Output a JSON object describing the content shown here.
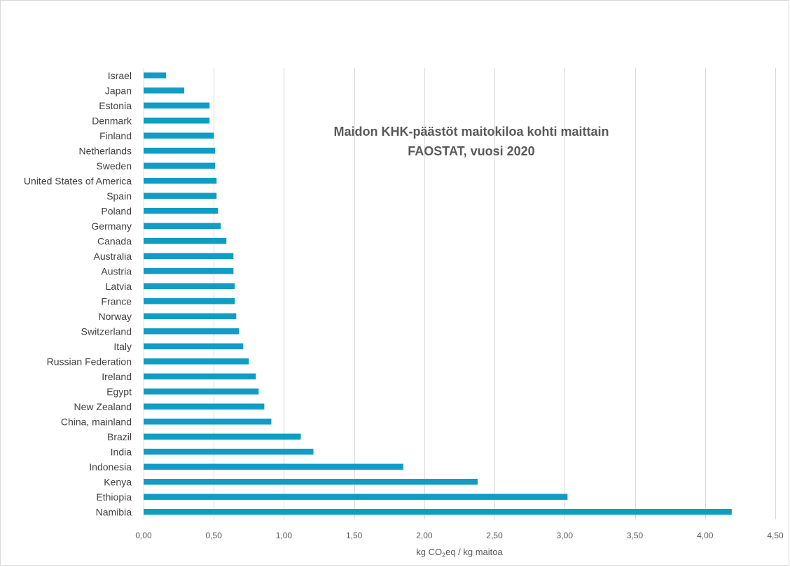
{
  "chart_data": {
    "type": "bar",
    "orientation": "horizontal",
    "title_line1": "Maidon KHK-päästöt maitokiloa kohti maittain",
    "title_line2": "FAOSTAT, vuosi 2020",
    "xlabel_prefix": "kg CO",
    "xlabel_sub": "2",
    "xlabel_suffix": "eq / kg maitoa",
    "ylabel": "",
    "xlim": [
      0,
      4.5
    ],
    "x_ticks": [
      0,
      0.5,
      1.0,
      1.5,
      2.0,
      2.5,
      3.0,
      3.5,
      4.0,
      4.5
    ],
    "x_tick_labels": [
      "0,00",
      "0,50",
      "1,00",
      "1,50",
      "2,00",
      "2,50",
      "3,00",
      "3,50",
      "4,00",
      "4,50"
    ],
    "grid": "vertical major gridlines",
    "bar_color": "#0f9dc4",
    "categories": [
      "Israel",
      "Japan",
      "Estonia",
      "Denmark",
      "Finland",
      "Netherlands",
      "Sweden",
      "United States of America",
      "Spain",
      "Poland",
      "Germany",
      "Canada",
      "Australia",
      "Austria",
      "Latvia",
      "France",
      "Norway",
      "Switzerland",
      "Italy",
      "Russian Federation",
      "Ireland",
      "Egypt",
      "New Zealand",
      "China, mainland",
      "Brazil",
      "India",
      "Indonesia",
      "Kenya",
      "Ethiopia",
      "Namibia"
    ],
    "values": [
      0.16,
      0.29,
      0.47,
      0.47,
      0.5,
      0.51,
      0.51,
      0.52,
      0.52,
      0.53,
      0.55,
      0.59,
      0.64,
      0.64,
      0.65,
      0.65,
      0.66,
      0.68,
      0.71,
      0.75,
      0.8,
      0.82,
      0.86,
      0.91,
      1.12,
      1.21,
      1.85,
      2.38,
      3.02,
      4.19
    ]
  }
}
